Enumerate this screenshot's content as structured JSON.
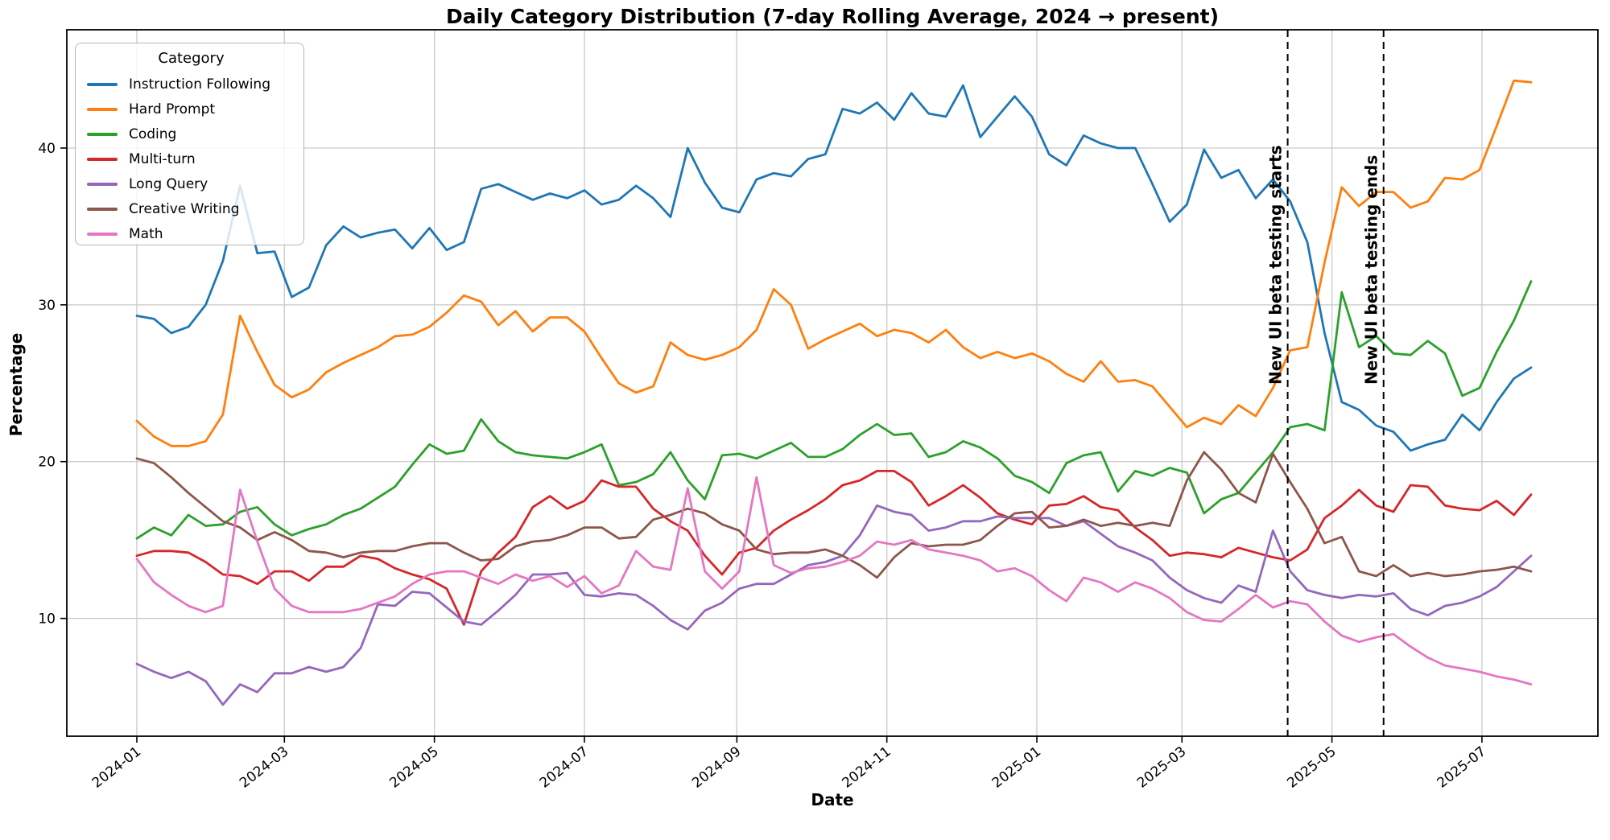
{
  "figure": {
    "title": "Daily Category Distribution (7-day Rolling Average, 2024 → present)",
    "xlabel": "Date",
    "ylabel": "Percentage",
    "background": "#ffffff",
    "grid_color": "#c9c9c9",
    "spine_color": "#000000"
  },
  "legend": {
    "title": "Category",
    "entries": [
      {
        "label": "Instruction Following",
        "color": "#1f77b4"
      },
      {
        "label": "Hard Prompt",
        "color": "#ff7f0e"
      },
      {
        "label": "Coding",
        "color": "#2ca02c"
      },
      {
        "label": "Multi-turn",
        "color": "#d62728"
      },
      {
        "label": "Long Query",
        "color": "#9467bd"
      },
      {
        "label": "Creative Writing",
        "color": "#8c564b"
      },
      {
        "label": "Math",
        "color": "#e377c2"
      }
    ]
  },
  "axes": {
    "x_ticks": [
      {
        "label": "2024-01",
        "day": 0
      },
      {
        "label": "2024-03",
        "day": 60
      },
      {
        "label": "2024-05",
        "day": 121
      },
      {
        "label": "2024-07",
        "day": 182
      },
      {
        "label": "2024-09",
        "day": 244
      },
      {
        "label": "2024-11",
        "day": 305
      },
      {
        "label": "2025-01",
        "day": 366
      },
      {
        "label": "2025-03",
        "day": 425
      },
      {
        "label": "2025-05",
        "day": 486
      },
      {
        "label": "2025-07",
        "day": 547
      }
    ],
    "y_ticks": [
      10,
      20,
      30,
      40
    ],
    "ylim": [
      2.5,
      47.5
    ],
    "grid": true,
    "legend_position": "upper left"
  },
  "chart_data": {
    "type": "line",
    "title": "Daily Category Distribution (7-day Rolling Average, 2024 → present)",
    "xlabel": "Date",
    "ylabel": "Percentage",
    "x_unit": "days since 2024-01-01, weekly samples",
    "x": [
      0,
      7,
      14,
      21,
      28,
      35,
      42,
      49,
      56,
      63,
      70,
      77,
      84,
      91,
      98,
      105,
      112,
      119,
      126,
      133,
      140,
      147,
      154,
      161,
      168,
      175,
      182,
      189,
      196,
      203,
      210,
      217,
      224,
      231,
      238,
      245,
      252,
      259,
      266,
      273,
      280,
      287,
      294,
      301,
      308,
      315,
      322,
      329,
      336,
      343,
      350,
      357,
      364,
      371,
      378,
      385,
      392,
      399,
      406,
      413,
      420,
      427,
      434,
      441,
      448,
      455,
      462,
      469,
      476,
      483,
      490,
      497,
      504,
      511,
      518,
      525,
      532,
      539,
      546,
      553,
      560,
      567
    ],
    "series": [
      {
        "name": "Instruction Following",
        "color": "#1f77b4",
        "values": [
          29.3,
          29.1,
          28.2,
          28.6,
          30.0,
          32.8,
          37.6,
          33.3,
          33.4,
          30.5,
          31.1,
          33.8,
          35.0,
          34.3,
          34.6,
          34.8,
          33.6,
          34.9,
          33.5,
          34.0,
          37.4,
          37.7,
          37.2,
          36.7,
          37.1,
          36.8,
          37.3,
          36.4,
          36.7,
          37.6,
          36.8,
          35.6,
          40.0,
          37.8,
          36.2,
          35.9,
          38.0,
          38.4,
          38.2,
          39.3,
          39.6,
          42.5,
          42.2,
          42.9,
          41.8,
          43.5,
          42.2,
          42.0,
          44.0,
          40.7,
          42.0,
          43.3,
          42.0,
          39.6,
          38.9,
          40.8,
          40.3,
          40.0,
          40.0,
          37.7,
          35.3,
          36.4,
          39.9,
          38.1,
          38.6,
          36.8,
          38.0,
          36.6,
          34.0,
          28.2,
          23.8,
          23.3,
          22.3,
          21.9,
          20.7,
          21.1,
          21.4,
          23.0,
          22.0,
          23.8,
          25.3,
          26.0
        ]
      },
      {
        "name": "Hard Prompt",
        "color": "#ff7f0e",
        "values": [
          22.6,
          21.6,
          21.0,
          21.0,
          21.3,
          23.0,
          29.3,
          27.0,
          24.9,
          24.1,
          24.6,
          25.7,
          26.3,
          26.8,
          27.3,
          28.0,
          28.1,
          28.6,
          29.5,
          30.6,
          30.2,
          28.7,
          29.6,
          28.3,
          29.2,
          29.2,
          28.3,
          26.6,
          25.0,
          24.4,
          24.8,
          27.6,
          26.8,
          26.5,
          26.8,
          27.3,
          28.4,
          31.0,
          30.0,
          27.2,
          27.8,
          28.3,
          28.8,
          28.0,
          28.4,
          28.2,
          27.6,
          28.4,
          27.3,
          26.6,
          27.0,
          26.6,
          26.9,
          26.4,
          25.6,
          25.1,
          26.4,
          25.1,
          25.2,
          24.8,
          23.5,
          22.2,
          22.8,
          22.4,
          23.6,
          22.9,
          24.7,
          27.1,
          27.3,
          32.7,
          37.5,
          36.3,
          37.2,
          37.2,
          36.2,
          36.6,
          38.1,
          38.0,
          38.6,
          41.4,
          44.3,
          44.2
        ]
      },
      {
        "name": "Coding",
        "color": "#2ca02c",
        "values": [
          15.1,
          15.8,
          15.3,
          16.6,
          15.9,
          16.0,
          16.8,
          17.1,
          16.0,
          15.3,
          15.7,
          16.0,
          16.6,
          17.0,
          17.7,
          18.4,
          19.8,
          21.1,
          20.5,
          20.7,
          22.7,
          21.3,
          20.6,
          20.4,
          20.3,
          20.2,
          20.6,
          21.1,
          18.5,
          18.7,
          19.2,
          20.6,
          18.8,
          17.6,
          20.4,
          20.5,
          20.2,
          20.7,
          21.2,
          20.3,
          20.3,
          20.8,
          21.7,
          22.4,
          21.7,
          21.8,
          20.3,
          20.6,
          21.3,
          20.9,
          20.2,
          19.1,
          18.7,
          18.0,
          19.9,
          20.4,
          20.6,
          18.1,
          19.4,
          19.1,
          19.6,
          19.3,
          16.7,
          17.6,
          18.0,
          19.3,
          20.6,
          22.2,
          22.4,
          22.0,
          30.8,
          27.3,
          28.0,
          26.9,
          26.8,
          27.7,
          26.9,
          24.2,
          24.7,
          27.0,
          29.0,
          31.5
        ]
      },
      {
        "name": "Multi-turn",
        "color": "#d62728",
        "values": [
          14.0,
          14.3,
          14.3,
          14.2,
          13.6,
          12.8,
          12.7,
          12.2,
          13.0,
          13.0,
          12.4,
          13.3,
          13.3,
          14.0,
          13.8,
          13.2,
          12.8,
          12.5,
          11.9,
          9.6,
          13.0,
          14.2,
          15.2,
          17.1,
          17.8,
          17.0,
          17.5,
          18.8,
          18.4,
          18.4,
          17.0,
          16.2,
          15.6,
          14.0,
          12.8,
          14.2,
          14.5,
          15.6,
          16.3,
          16.9,
          17.6,
          18.5,
          18.8,
          19.4,
          19.4,
          18.7,
          17.2,
          17.8,
          18.5,
          17.7,
          16.7,
          16.3,
          16.0,
          17.2,
          17.3,
          17.8,
          17.1,
          16.9,
          15.8,
          15.0,
          14.0,
          14.2,
          14.1,
          13.9,
          14.5,
          14.2,
          13.9,
          13.7,
          14.4,
          16.4,
          17.2,
          18.2,
          17.2,
          16.8,
          18.5,
          18.4,
          17.2,
          17.0,
          16.9,
          17.5,
          16.6,
          17.9
        ]
      },
      {
        "name": "Long Query",
        "color": "#9467bd",
        "values": [
          7.1,
          6.6,
          6.2,
          6.6,
          6.0,
          4.5,
          5.8,
          5.3,
          6.5,
          6.5,
          6.9,
          6.6,
          6.9,
          8.1,
          10.9,
          10.8,
          11.7,
          11.6,
          10.7,
          9.8,
          9.6,
          10.5,
          11.5,
          12.8,
          12.8,
          12.9,
          11.5,
          11.4,
          11.6,
          11.5,
          10.8,
          9.9,
          9.3,
          10.5,
          11.0,
          11.9,
          12.2,
          12.2,
          12.8,
          13.4,
          13.6,
          14.0,
          15.3,
          17.2,
          16.8,
          16.6,
          15.6,
          15.8,
          16.2,
          16.2,
          16.5,
          16.4,
          16.4,
          16.4,
          15.9,
          16.2,
          15.4,
          14.6,
          14.2,
          13.7,
          12.6,
          11.8,
          11.3,
          11.0,
          12.1,
          11.7,
          15.6,
          13.0,
          11.8,
          11.5,
          11.3,
          11.5,
          11.4,
          11.6,
          10.6,
          10.2,
          10.8,
          11.0,
          11.4,
          12.0,
          13.0,
          14.0
        ]
      },
      {
        "name": "Creative Writing",
        "color": "#8c564b",
        "values": [
          20.2,
          19.9,
          19.0,
          18.0,
          17.1,
          16.2,
          15.8,
          15.0,
          15.5,
          15.0,
          14.3,
          14.2,
          13.9,
          14.2,
          14.3,
          14.3,
          14.6,
          14.8,
          14.8,
          14.2,
          13.7,
          13.8,
          14.6,
          14.9,
          15.0,
          15.3,
          15.8,
          15.8,
          15.1,
          15.2,
          16.3,
          16.6,
          17.0,
          16.7,
          16.0,
          15.6,
          14.4,
          14.1,
          14.2,
          14.2,
          14.4,
          14.0,
          13.4,
          12.6,
          13.9,
          14.8,
          14.6,
          14.7,
          14.7,
          15.0,
          15.9,
          16.7,
          16.8,
          15.8,
          15.9,
          16.3,
          15.9,
          16.1,
          15.9,
          16.1,
          15.9,
          18.8,
          20.6,
          19.5,
          18.0,
          17.4,
          20.5,
          18.7,
          17.0,
          14.8,
          15.2,
          13.0,
          12.7,
          13.4,
          12.7,
          12.9,
          12.7,
          12.8,
          13.0,
          13.1,
          13.3,
          13.0
        ]
      },
      {
        "name": "Math",
        "color": "#e377c2",
        "values": [
          13.8,
          12.3,
          11.5,
          10.8,
          10.4,
          10.8,
          18.2,
          14.9,
          11.9,
          10.8,
          10.4,
          10.4,
          10.4,
          10.6,
          11.0,
          11.4,
          12.2,
          12.8,
          13.0,
          13.0,
          12.6,
          12.2,
          12.8,
          12.4,
          12.7,
          12.0,
          12.7,
          11.6,
          12.1,
          14.3,
          13.3,
          13.1,
          18.3,
          13.0,
          11.9,
          13.0,
          19.0,
          13.4,
          12.9,
          13.2,
          13.3,
          13.6,
          14.0,
          14.9,
          14.7,
          15.0,
          14.4,
          14.2,
          14.0,
          13.7,
          13.0,
          13.2,
          12.7,
          11.8,
          11.1,
          12.6,
          12.3,
          11.7,
          12.3,
          11.9,
          11.3,
          10.4,
          9.9,
          9.8,
          10.6,
          11.5,
          10.7,
          11.1,
          10.9,
          9.8,
          8.9,
          8.5,
          8.8,
          9.0,
          8.2,
          7.5,
          7.0,
          6.8,
          6.6,
          6.3,
          6.1,
          5.8
        ]
      }
    ],
    "vlines": [
      {
        "day": 468,
        "label": "New UI beta testing starts",
        "style": "dashed",
        "color": "#000000"
      },
      {
        "day": 507,
        "label": "New UI beta testing ends",
        "style": "dashed",
        "color": "#000000"
      }
    ]
  }
}
